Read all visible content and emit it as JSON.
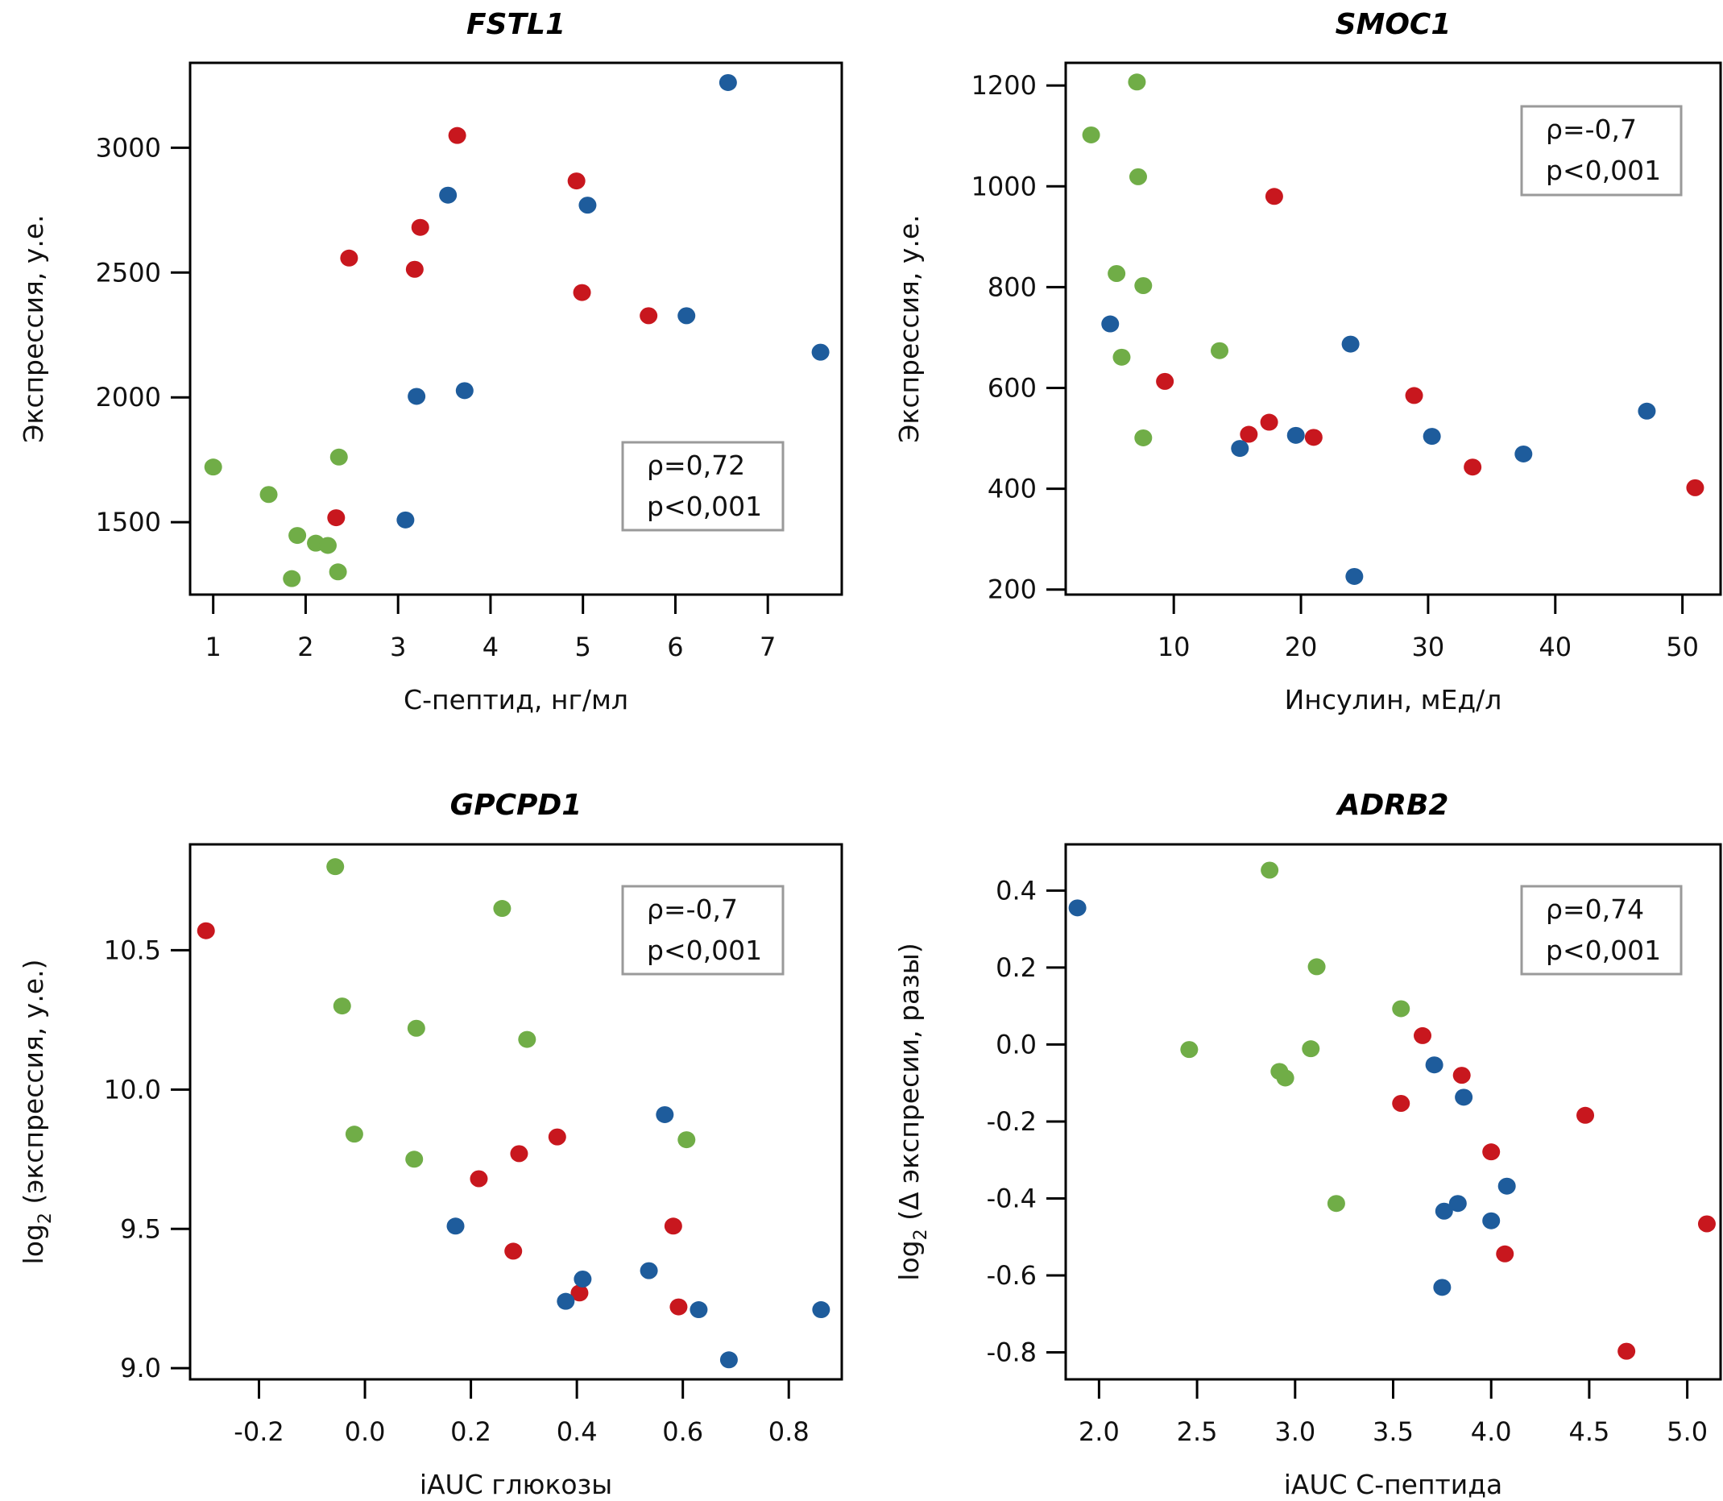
{
  "colors": {
    "green": "#70ad47",
    "red": "#c8171e",
    "blue": "#1e5c9c",
    "frame": "#000000",
    "stat_box": "#9a9a9a"
  },
  "chart_data": [
    {
      "type": "scatter",
      "title": "FSTL1",
      "xlabel": "С-пептид, нг/мл",
      "ylabel": "Экспрессия, у.е.",
      "ylabel_prefix": "",
      "xticks": [
        1,
        2,
        3,
        4,
        5,
        6,
        7
      ],
      "xtick_labels": [
        "1",
        "2",
        "3",
        "4",
        "5",
        "6",
        "7"
      ],
      "yticks": [
        1500,
        2000,
        2500,
        3000
      ],
      "ytick_labels": [
        "1500",
        "2000",
        "2500",
        "3000"
      ],
      "xlim": [
        0.75,
        7.8
      ],
      "ylim": [
        1210,
        3340
      ],
      "stats": {
        "rho": "ρ=0,72",
        "p": "p<0,001"
      },
      "stats_position": "bottom-right",
      "series": [
        {
          "name": "green",
          "color_key": "green",
          "points": [
            [
              1.0,
              1721
            ],
            [
              1.6,
              1611
            ],
            [
              1.91,
              1447
            ],
            [
              2.11,
              1416
            ],
            [
              2.24,
              1407
            ],
            [
              2.36,
              1761
            ],
            [
              2.35,
              1301
            ],
            [
              1.85,
              1274
            ]
          ]
        },
        {
          "name": "red",
          "color_key": "red",
          "points": [
            [
              3.64,
              3049
            ],
            [
              4.93,
              2867
            ],
            [
              3.24,
              2681
            ],
            [
              2.47,
              2558
            ],
            [
              3.18,
              2513
            ],
            [
              4.99,
              2420
            ],
            [
              5.71,
              2327
            ],
            [
              2.33,
              1518
            ]
          ]
        },
        {
          "name": "blue",
          "color_key": "blue",
          "points": [
            [
              6.57,
              3261
            ],
            [
              3.54,
              2810
            ],
            [
              5.05,
              2770
            ],
            [
              6.12,
              2327
            ],
            [
              7.57,
              2181
            ],
            [
              3.2,
              2004
            ],
            [
              3.72,
              2027
            ],
            [
              3.08,
              1509
            ]
          ]
        }
      ]
    },
    {
      "type": "scatter",
      "title": "SMOC1",
      "xlabel": "Инсулин, мЕд/л",
      "ylabel": "Экспрессия, у.е.",
      "ylabel_prefix": "",
      "xticks": [
        10,
        20,
        30,
        40,
        50
      ],
      "xtick_labels": [
        "10",
        "20",
        "30",
        "40",
        "50"
      ],
      "yticks": [
        200,
        400,
        600,
        800,
        1000,
        1200
      ],
      "ytick_labels": [
        "200",
        "400",
        "600",
        "800",
        "1000",
        "1200"
      ],
      "xlim": [
        1.5,
        53.0
      ],
      "ylim": [
        190,
        1245
      ],
      "stats": {
        "rho": "ρ=-0,7",
        "p": "p<0,001"
      },
      "stats_position": "top-right",
      "series": [
        {
          "name": "green",
          "color_key": "green",
          "points": [
            [
              7.1,
              1207
            ],
            [
              3.5,
              1102
            ],
            [
              7.2,
              1019
            ],
            [
              5.5,
              827
            ],
            [
              7.6,
              803
            ],
            [
              5.9,
              661
            ],
            [
              13.6,
              674
            ],
            [
              7.6,
              501
            ]
          ]
        },
        {
          "name": "red",
          "color_key": "red",
          "points": [
            [
              17.9,
              980
            ],
            [
              9.3,
              613
            ],
            [
              15.9,
              508
            ],
            [
              17.5,
              532
            ],
            [
              21.0,
              502
            ],
            [
              28.9,
              585
            ],
            [
              33.5,
              443
            ],
            [
              51.0,
              402
            ]
          ]
        },
        {
          "name": "blue",
          "color_key": "blue",
          "points": [
            [
              5.0,
              727
            ],
            [
              23.9,
              687
            ],
            [
              15.2,
              480
            ],
            [
              19.6,
              506
            ],
            [
              30.3,
              504
            ],
            [
              37.5,
              469
            ],
            [
              47.2,
              554
            ],
            [
              24.2,
              226
            ]
          ]
        }
      ]
    },
    {
      "type": "scatter",
      "title": "GPCPD1",
      "xlabel": "iAUC глюкозы",
      "ylabel": " (экспрессия, у.е.)",
      "ylabel_prefix": "log",
      "ylabel_sub": "2",
      "xticks": [
        -0.2,
        0.0,
        0.2,
        0.4,
        0.6,
        0.8
      ],
      "xtick_labels": [
        "-0.2",
        "0.0",
        "0.2",
        "0.4",
        "0.6",
        "0.8"
      ],
      "yticks": [
        9.0,
        9.5,
        10.0,
        10.5
      ],
      "ytick_labels": [
        "9.0",
        "9.5",
        "10.0",
        "10.5"
      ],
      "xlim": [
        -0.33,
        0.9
      ],
      "ylim": [
        8.96,
        10.88
      ],
      "stats": {
        "rho": "ρ=-0,7",
        "p": "p<0,001"
      },
      "stats_position": "top-right",
      "series": [
        {
          "name": "green",
          "color_key": "green",
          "points": [
            [
              -0.056,
              10.8
            ],
            [
              0.259,
              10.65
            ],
            [
              -0.043,
              10.3
            ],
            [
              0.097,
              10.22
            ],
            [
              0.306,
              10.18
            ],
            [
              -0.02,
              9.84
            ],
            [
              0.093,
              9.75
            ],
            [
              0.607,
              9.82
            ]
          ]
        },
        {
          "name": "red",
          "color_key": "red",
          "points": [
            [
              -0.3,
              10.57
            ],
            [
              0.363,
              9.83
            ],
            [
              0.291,
              9.77
            ],
            [
              0.215,
              9.68
            ],
            [
              0.582,
              9.51
            ],
            [
              0.28,
              9.42
            ],
            [
              0.405,
              9.27
            ],
            [
              0.592,
              9.22
            ]
          ]
        },
        {
          "name": "blue",
          "color_key": "blue",
          "points": [
            [
              0.566,
              9.91
            ],
            [
              0.171,
              9.51
            ],
            [
              0.411,
              9.32
            ],
            [
              0.379,
              9.24
            ],
            [
              0.536,
              9.35
            ],
            [
              0.63,
              9.21
            ],
            [
              0.861,
              9.21
            ],
            [
              0.687,
              9.03
            ]
          ]
        }
      ]
    },
    {
      "type": "scatter",
      "title": "ADRB2",
      "xlabel": "iAUC С-пептида",
      "ylabel": " (Δ экспресии, разы)",
      "ylabel_prefix": "log",
      "ylabel_sub": "2",
      "xticks": [
        2.0,
        2.5,
        3.0,
        3.5,
        4.0,
        4.5,
        5.0
      ],
      "xtick_labels": [
        "2.0",
        "2.5",
        "3.0",
        "3.5",
        "4.0",
        "4.5",
        "5.0"
      ],
      "yticks": [
        -0.8,
        -0.6,
        -0.4,
        -0.2,
        0.0,
        0.2,
        0.4
      ],
      "ytick_labels": [
        "-0.8",
        "-0.6",
        "-0.4",
        "-0.2",
        "0.0",
        "0.2",
        "0.4"
      ],
      "xlim": [
        1.83,
        5.17
      ],
      "ylim": [
        -0.87,
        0.52
      ],
      "stats": {
        "rho": "ρ=0,74",
        "p": "p<0,001"
      },
      "stats_position": "top-right",
      "series": [
        {
          "name": "green",
          "color_key": "green",
          "points": [
            [
              2.87,
              0.453
            ],
            [
              3.11,
              0.202
            ],
            [
              3.54,
              0.093
            ],
            [
              2.46,
              -0.013
            ],
            [
              3.08,
              -0.011
            ],
            [
              2.92,
              -0.07
            ],
            [
              2.95,
              -0.087
            ],
            [
              3.21,
              -0.413
            ]
          ]
        },
        {
          "name": "red",
          "color_key": "red",
          "points": [
            [
              3.65,
              0.023
            ],
            [
              3.85,
              -0.08
            ],
            [
              3.54,
              -0.153
            ],
            [
              4.48,
              -0.184
            ],
            [
              4.0,
              -0.279
            ],
            [
              4.07,
              -0.544
            ],
            [
              5.1,
              -0.466
            ],
            [
              4.69,
              -0.797
            ]
          ]
        },
        {
          "name": "blue",
          "color_key": "blue",
          "points": [
            [
              1.89,
              0.355
            ],
            [
              3.71,
              -0.053
            ],
            [
              3.86,
              -0.137
            ],
            [
              4.08,
              -0.368
            ],
            [
              3.83,
              -0.413
            ],
            [
              3.76,
              -0.433
            ],
            [
              4.0,
              -0.458
            ],
            [
              3.75,
              -0.631
            ]
          ]
        }
      ]
    }
  ]
}
